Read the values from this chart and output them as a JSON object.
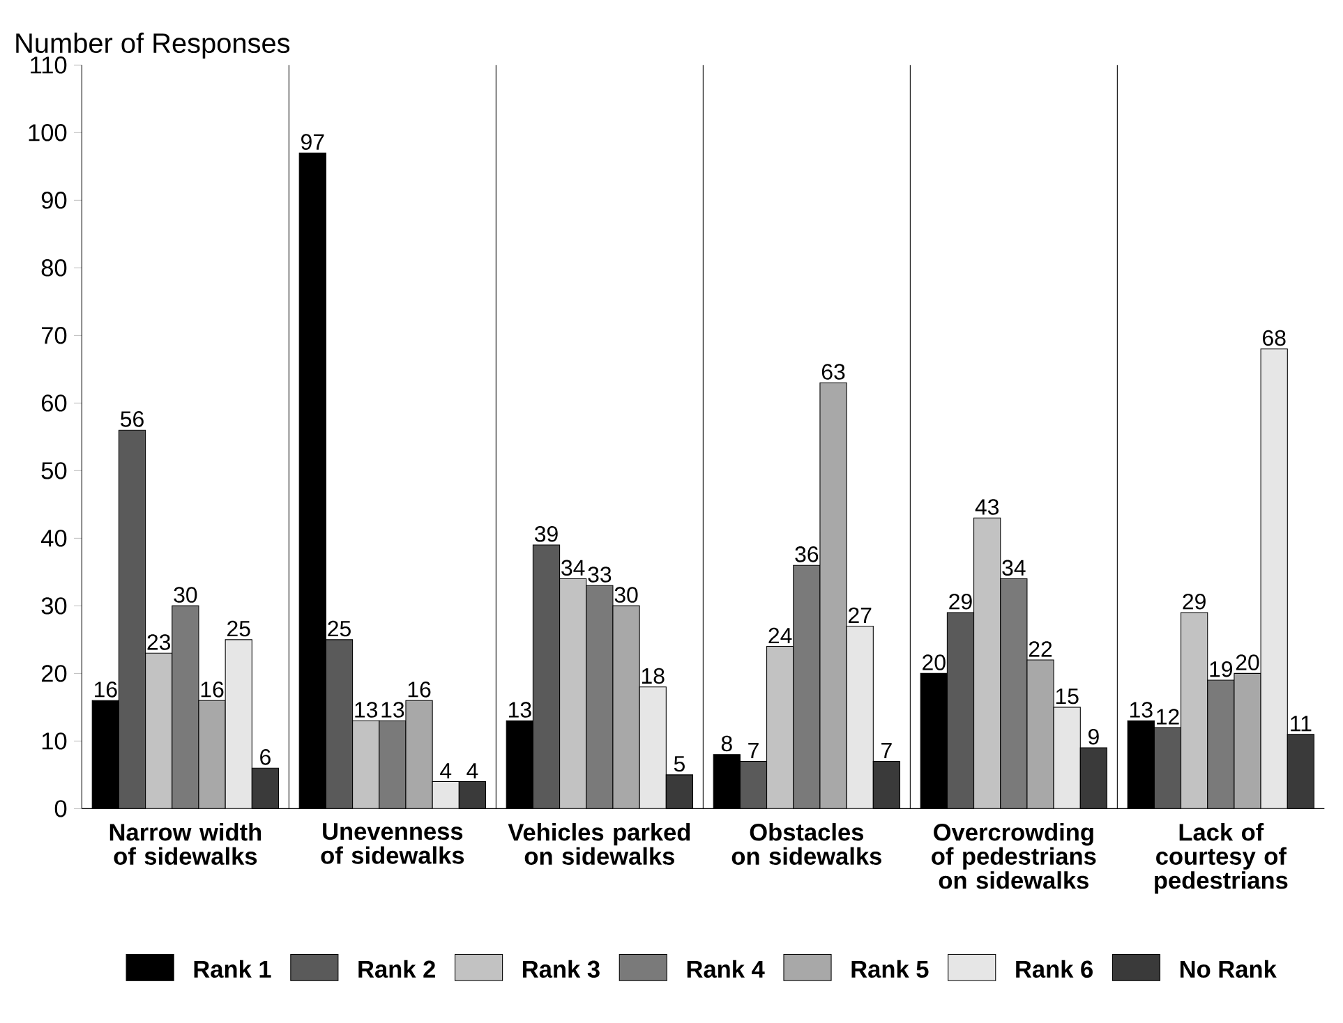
{
  "chart_data": {
    "type": "bar",
    "ylabel": "Number of Responses",
    "categories": [
      "Narrow width of sidewalks",
      "Unevenness of sidewalks",
      "Vehicles parked on sidewalks",
      "Obstacles on sidewalks",
      "Overcrowding of pedestrians on sidewalks",
      "Lack of courtesy of pedestrians"
    ],
    "series": [
      {
        "name": "Rank 1",
        "color": "#000000",
        "values": [
          16,
          97,
          13,
          8,
          20,
          13
        ]
      },
      {
        "name": "Rank 2",
        "color": "#5a5a5a",
        "values": [
          56,
          25,
          39,
          7,
          29,
          12
        ]
      },
      {
        "name": "Rank 3",
        "color": "#c2c2c2",
        "values": [
          23,
          13,
          34,
          24,
          43,
          29
        ]
      },
      {
        "name": "Rank 4",
        "color": "#7a7a7a",
        "values": [
          30,
          13,
          33,
          36,
          34,
          19
        ]
      },
      {
        "name": "Rank 5",
        "color": "#a8a8a8",
        "values": [
          16,
          16,
          30,
          63,
          22,
          20
        ]
      },
      {
        "name": "Rank 6",
        "color": "#e6e6e6",
        "values": [
          25,
          4,
          18,
          27,
          15,
          68
        ]
      },
      {
        "name": "No Rank",
        "color": "#3a3a3a",
        "values": [
          6,
          4,
          5,
          7,
          9,
          11
        ]
      }
    ],
    "ylim": [
      0,
      110
    ],
    "yticks": [
      0,
      10,
      20,
      30,
      40,
      50,
      60,
      70,
      80,
      90,
      100,
      110
    ],
    "grid": "x",
    "legend": "bottom",
    "data_labels": true
  }
}
